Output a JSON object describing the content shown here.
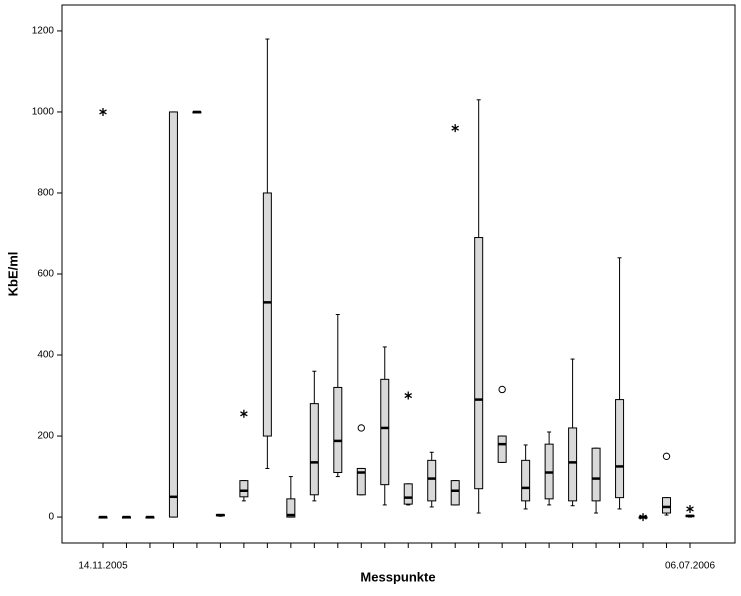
{
  "chart_data": {
    "type": "box",
    "y_label": "KbE/ml",
    "x_label": "Messpunkte",
    "categories": [
      "14.11.2005",
      null,
      null,
      null,
      null,
      null,
      null,
      null,
      null,
      null,
      null,
      null,
      null,
      null,
      null,
      null,
      null,
      null,
      null,
      null,
      null,
      null,
      null,
      null,
      null,
      "06.07.2006"
    ],
    "ylim": [
      -64,
      1264
    ],
    "yticks": [
      0,
      200,
      400,
      600,
      800,
      1000,
      1200
    ],
    "color": "#d9d9d9",
    "boxes": [
      {
        "min": 0,
        "q1": 0,
        "median": 0,
        "q3": 0,
        "max": 0,
        "extremes": [
          1000
        ]
      },
      {
        "min": 0,
        "q1": 0,
        "median": 0,
        "q3": 0,
        "max": 0
      },
      {
        "min": 0,
        "q1": 0,
        "median": 0,
        "q3": 0,
        "max": 0
      },
      {
        "min": 0,
        "q1": 0,
        "median": 50,
        "q3": 1000,
        "max": 1000
      },
      {
        "min": 1000,
        "q1": 1000,
        "median": 1000,
        "q3": 1000,
        "max": 1000
      },
      {
        "min": 2,
        "q1": 3,
        "median": 5,
        "q3": 6,
        "max": 6
      },
      {
        "min": 40,
        "q1": 50,
        "median": 65,
        "q3": 90,
        "max": 90,
        "extremes": [
          255
        ]
      },
      {
        "min": 120,
        "q1": 200,
        "median": 530,
        "q3": 800,
        "max": 1180
      },
      {
        "min": 0,
        "q1": 0,
        "median": 5,
        "q3": 45,
        "max": 100
      },
      {
        "min": 40,
        "q1": 55,
        "median": 135,
        "q3": 280,
        "max": 360
      },
      {
        "min": 100,
        "q1": 110,
        "median": 188,
        "q3": 320,
        "max": 500
      },
      {
        "min": 55,
        "q1": 55,
        "median": 110,
        "q3": 120,
        "max": 120,
        "outliers": [
          220
        ]
      },
      {
        "min": 30,
        "q1": 80,
        "median": 220,
        "q3": 340,
        "max": 420
      },
      {
        "min": 30,
        "q1": 32,
        "median": 48,
        "q3": 82,
        "max": 82,
        "extremes": [
          300
        ]
      },
      {
        "min": 25,
        "q1": 40,
        "median": 95,
        "q3": 140,
        "max": 160
      },
      {
        "min": 30,
        "q1": 30,
        "median": 65,
        "q3": 90,
        "max": 90,
        "extremes": [
          960
        ]
      },
      {
        "min": 10,
        "q1": 70,
        "median": 290,
        "q3": 690,
        "max": 1030
      },
      {
        "min": 135,
        "q1": 135,
        "median": 180,
        "q3": 200,
        "max": 200,
        "outliers": [
          315
        ]
      },
      {
        "min": 20,
        "q1": 40,
        "median": 72,
        "q3": 140,
        "max": 178
      },
      {
        "min": 30,
        "q1": 45,
        "median": 110,
        "q3": 180,
        "max": 210
      },
      {
        "min": 28,
        "q1": 40,
        "median": 135,
        "q3": 220,
        "max": 390
      },
      {
        "min": 10,
        "q1": 40,
        "median": 95,
        "q3": 170,
        "max": 170
      },
      {
        "min": 20,
        "q1": 48,
        "median": 125,
        "q3": 290,
        "max": 640
      },
      {
        "min": 0,
        "q1": 0,
        "median": 0,
        "q3": 0,
        "max": 0,
        "extremes": [
          0
        ]
      },
      {
        "min": 5,
        "q1": 10,
        "median": 25,
        "q3": 48,
        "max": 48,
        "outliers": [
          150
        ]
      },
      {
        "min": 0,
        "q1": 1,
        "median": 3,
        "q3": 4,
        "max": 4,
        "extremes": [
          20
        ]
      }
    ]
  }
}
